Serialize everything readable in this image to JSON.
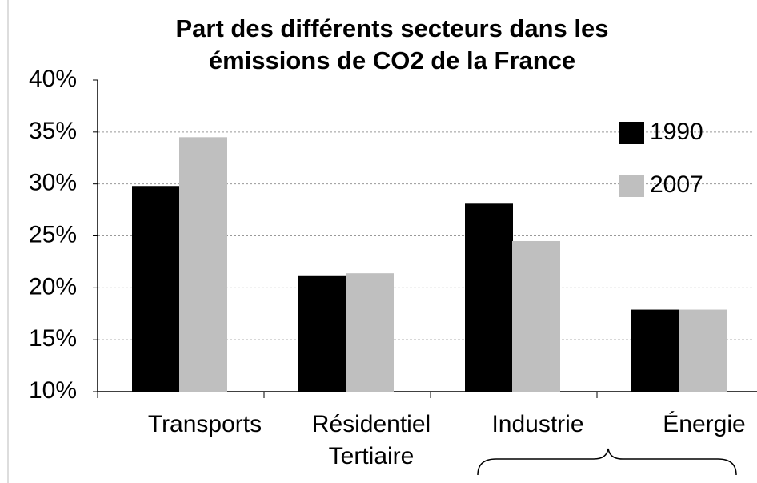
{
  "chart_data": {
    "type": "bar",
    "title": "Part des différents secteurs dans les\némissions de CO2 de la France",
    "categories": [
      "Transports",
      "Résidentiel\nTertiaire",
      "Industrie",
      "Énergie"
    ],
    "series": [
      {
        "name": "1990",
        "color": "#000000",
        "values": [
          29.8,
          21.2,
          28.1,
          17.9
        ]
      },
      {
        "name": "2007",
        "color": "#bfbfbf",
        "values": [
          34.5,
          21.4,
          24.5,
          17.9
        ]
      }
    ],
    "ylim": [
      10,
      40
    ],
    "yticks": [
      {
        "value": 10,
        "label": "10%"
      },
      {
        "value": 15,
        "label": "15%"
      },
      {
        "value": 20,
        "label": "20%"
      },
      {
        "value": 25,
        "label": "25%"
      },
      {
        "value": 30,
        "label": "30%"
      },
      {
        "value": 35,
        "label": "35%"
      },
      {
        "value": 40,
        "label": "40%"
      }
    ],
    "grid": true
  }
}
